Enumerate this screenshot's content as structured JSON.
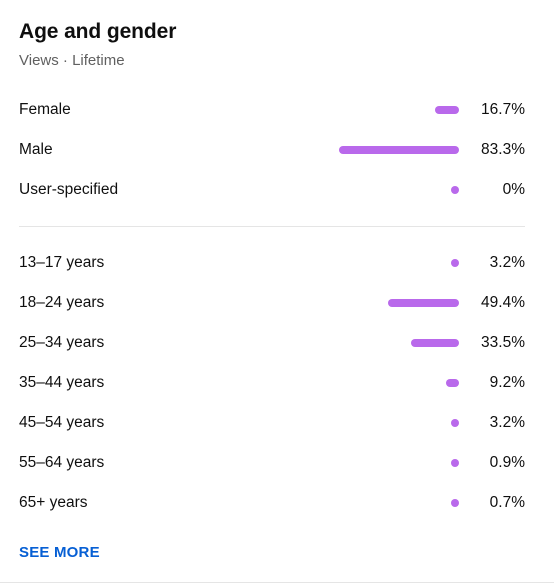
{
  "card": {
    "title": "Age and gender",
    "subtitle": "Views · Lifetime",
    "see_more_label": "SEE MORE"
  },
  "colors": {
    "bar": "#b969eb",
    "link": "#065fd4"
  },
  "gender": [
    {
      "label": "Female",
      "value": 16.7,
      "display": "16.7%"
    },
    {
      "label": "Male",
      "value": 83.3,
      "display": "83.3%"
    },
    {
      "label": "User-specified",
      "value": 0,
      "display": "0%"
    }
  ],
  "age": [
    {
      "label": "13–17 years",
      "value": 3.2,
      "display": "3.2%"
    },
    {
      "label": "18–24 years",
      "value": 49.4,
      "display": "49.4%"
    },
    {
      "label": "25–34 years",
      "value": 33.5,
      "display": "33.5%"
    },
    {
      "label": "35–44 years",
      "value": 9.2,
      "display": "9.2%"
    },
    {
      "label": "45–54 years",
      "value": 3.2,
      "display": "3.2%"
    },
    {
      "label": "55–64 years",
      "value": 0.9,
      "display": "0.9%"
    },
    {
      "label": "65+ years",
      "value": 0.7,
      "display": "0.7%"
    }
  ]
}
